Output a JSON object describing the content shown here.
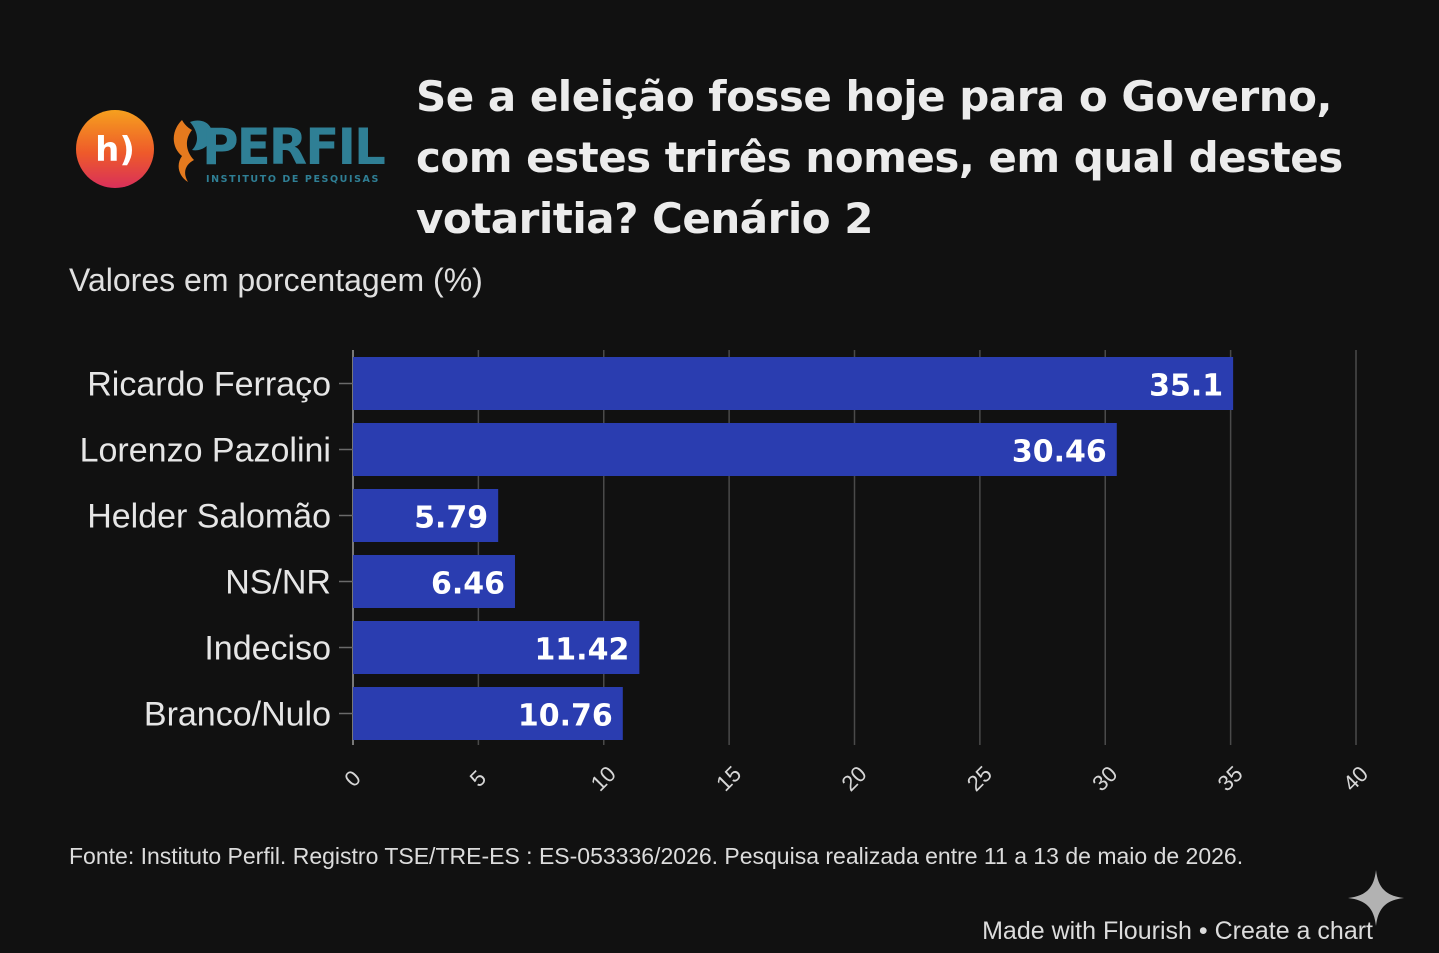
{
  "header": {
    "title": "Se a eleição fosse hoje para o Governo, com estes trirês nomes, em qual destes votaritia? Cenário 2",
    "subtitle": "Valores em porcentagem (%)"
  },
  "logos": {
    "h_logo_text": "h)",
    "perfil_name": "PERFIL",
    "perfil_tagline": "INSTITUTO DE PESQUISAS"
  },
  "chart_data": {
    "type": "bar",
    "orientation": "horizontal",
    "categories": [
      "Ricardo Ferraço",
      "Lorenzo Pazolini",
      "Helder Salomão",
      "NS/NR",
      "Indeciso",
      "Branco/Nulo"
    ],
    "values": [
      35.1,
      30.46,
      5.79,
      6.46,
      11.42,
      10.76
    ],
    "value_labels": [
      "35.1",
      "30.46",
      "5.79",
      "6.46",
      "11.42",
      "10.76"
    ],
    "xlim": [
      0,
      40
    ],
    "x_ticks": [
      "0",
      "5",
      "10",
      "15",
      "20",
      "25",
      "30",
      "35",
      "40"
    ],
    "grid": true,
    "bar_color": "#2a3db0"
  },
  "source_text": "Fonte: Instituto Perfil. Registro TSE/TRE-ES : ES-053336/2026. Pesquisa realizada entre 11 a 13 de maio de 2026.",
  "footer": {
    "made_with": "Made with Flourish",
    "separator": "•",
    "create": "Create a chart"
  },
  "colors": {
    "background": "#111111",
    "bar": "#2a3db0",
    "perfil_teal": "#2f7f95",
    "perfil_orange": "#e57a1e"
  }
}
